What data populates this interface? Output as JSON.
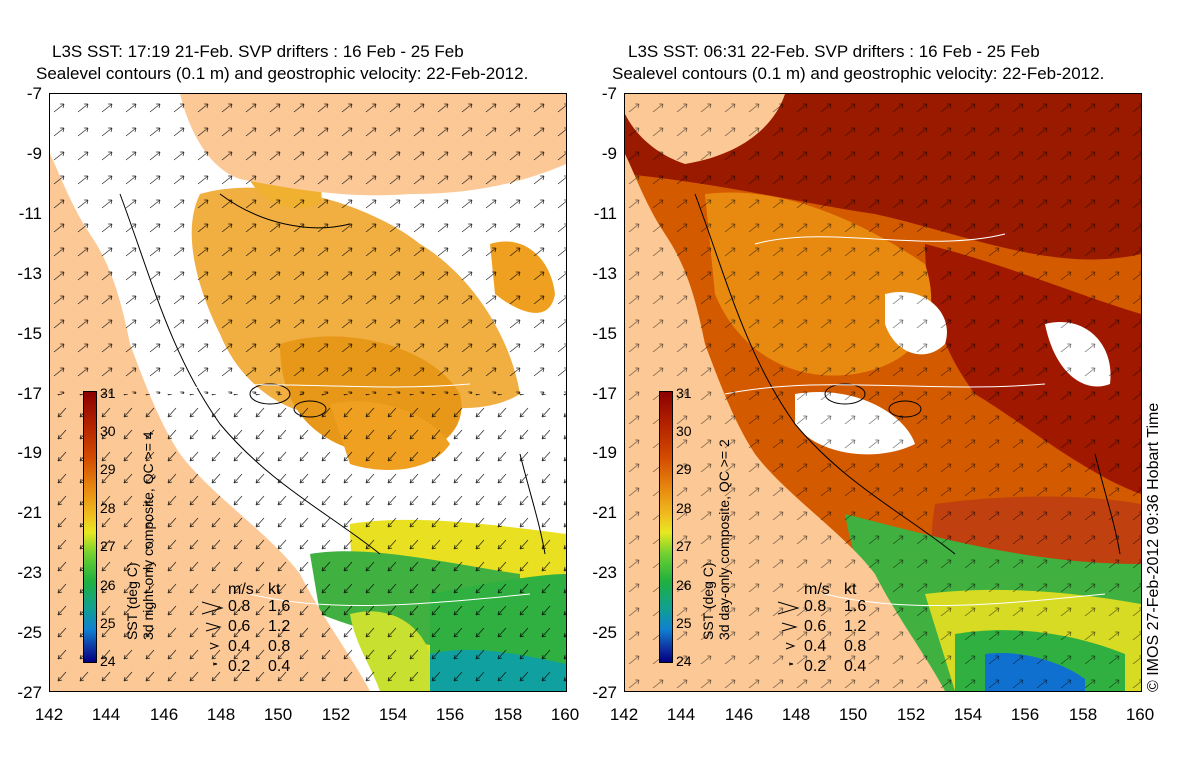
{
  "panels": [
    {
      "title_line1": "L3S SST: 17:19 21-Feb. SVP drifters : 16 Feb - 25 Feb",
      "title_line2": "Sealevel contours (0.1 m) and geostrophic velocity: 22-Feb-2012.",
      "colorbar_title": "SST (deg C)",
      "colorbar_subtitle": "3d night-only composite, QC >= 4",
      "sst_field": "mostly cloud-masked (white); orange 29-30 in north-central, green/yellow 27-28 in south, cyan near 26 at far south-east"
    },
    {
      "title_line1": "L3S SST: 06:31 22-Feb. SVP drifters : 16 Feb - 25 Feb",
      "title_line2": "Sealevel contours (0.1 m) and geostrophic velocity: 22-Feb-2012.",
      "colorbar_title": "SST (deg C)",
      "colorbar_subtitle": "3d day-only composite, QC >= 2",
      "sst_field": "dense coverage; dark red 30-31 in north and east, orange 29-30 central, green 27-28 south, blue ~25 at south-east"
    }
  ],
  "y_ticks": [
    "-7",
    "-9",
    "-11",
    "-13",
    "-15",
    "-17",
    "-19",
    "-21",
    "-23",
    "-25",
    "-27"
  ],
  "x_ticks": [
    "142",
    "144",
    "146",
    "148",
    "150",
    "152",
    "154",
    "156",
    "158",
    "160"
  ],
  "colorbar_ticks": [
    "31",
    "30",
    "29",
    "28",
    "27",
    "26",
    "25",
    "24"
  ],
  "legend": {
    "header_ms": "m/s",
    "header_kt": "kt",
    "rows": [
      {
        "ms": "0.8",
        "kt": "1.6"
      },
      {
        "ms": "0.6",
        "kt": "1.2"
      },
      {
        "ms": "0.4",
        "kt": "0.8"
      },
      {
        "ms": "0.2",
        "kt": "0.4"
      }
    ]
  },
  "credit": "© IMOS 27-Feb-2012 09:36 Hobart Time",
  "colors": {
    "land": "#fbc896",
    "cloud": "#ffffff",
    "sst_31": "#8b0000",
    "sst_30": "#d45a00",
    "sst_29": "#efa020",
    "sst_28": "#e8e820",
    "sst_27": "#30b040",
    "sst_26": "#10a0a0",
    "sst_25": "#1070d0",
    "sst_24": "#000080"
  },
  "map_extent": {
    "lon": [
      142,
      160
    ],
    "lat": [
      -27,
      -7
    ]
  }
}
